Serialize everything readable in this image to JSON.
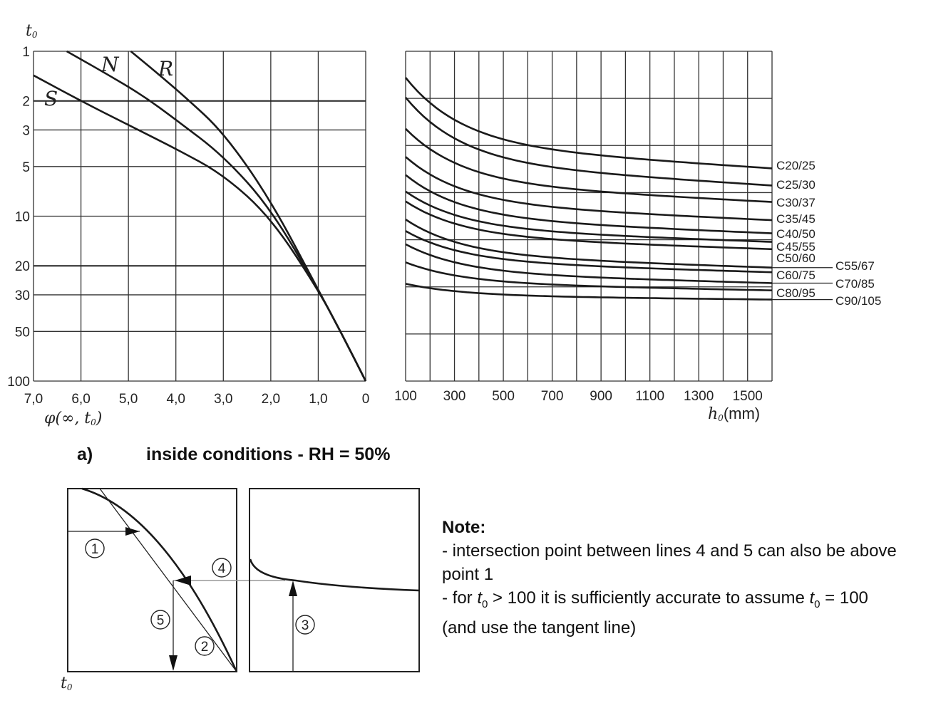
{
  "chart_data": [
    {
      "type": "line",
      "xlabel_prefix": "φ(∞, t",
      "xlabel_sub": "0",
      "xlabel_suffix": ")",
      "ylabel": "t",
      "ylabel_sub": "0",
      "xlim": [
        7.0,
        0
      ],
      "ylim": [
        1,
        100
      ],
      "yscale": "log",
      "x_ticks": [
        "7,0",
        "6,0",
        "5,0",
        "4,0",
        "3,0",
        "2,0",
        "1,0",
        "0"
      ],
      "y_ticks": [
        "1",
        "2",
        "3",
        "5",
        "10",
        "20",
        "30",
        "50",
        "100"
      ],
      "series": [
        {
          "name": "S",
          "x": [
            7.0,
            6.0,
            5.0,
            4.0,
            3.0,
            2.0,
            1.0,
            0.5,
            0
          ],
          "y": [
            1.4,
            2.0,
            2.8,
            3.9,
            5.6,
            10.2,
            28,
            52,
            100
          ]
        },
        {
          "name": "N",
          "x": [
            6.3,
            5.5,
            4.7,
            4.0,
            3.0,
            2.0,
            1.0,
            0.5,
            0
          ],
          "y": [
            1.0,
            1.35,
            1.85,
            2.6,
            4.3,
            9.0,
            28,
            52,
            100
          ]
        },
        {
          "name": "R",
          "x": [
            4.95,
            4.4,
            3.8,
            3.0,
            2.0,
            1.0,
            0.5,
            0
          ],
          "y": [
            1.0,
            1.35,
            1.9,
            3.1,
            8.0,
            28,
            52,
            100
          ]
        }
      ]
    },
    {
      "type": "line",
      "xlabel_main": "h",
      "xlabel_sub": "0",
      "xlabel_unit": "(mm)",
      "xlim": [
        100,
        1600
      ],
      "x_ticks": [
        "100",
        "300",
        "500",
        "700",
        "900",
        "1100",
        "1300",
        "1500"
      ],
      "series": [
        {
          "name": "C20/25",
          "y_start_frac": 0.08,
          "y_end_frac": 0.355
        },
        {
          "name": "C25/30",
          "y_start_frac": 0.14,
          "y_end_frac": 0.407
        },
        {
          "name": "C30/37",
          "y_start_frac": 0.235,
          "y_end_frac": 0.457
        },
        {
          "name": "C35/45",
          "y_start_frac": 0.32,
          "y_end_frac": 0.512
        },
        {
          "name": "C40/50",
          "y_start_frac": 0.375,
          "y_end_frac": 0.552
        },
        {
          "name": "C45/55",
          "y_start_frac": 0.425,
          "y_end_frac": 0.578
        },
        {
          "name": "C50/60",
          "y_start_frac": 0.455,
          "y_end_frac": 0.6
        },
        {
          "name": "C55/67",
          "y_start_frac": 0.51,
          "y_end_frac": 0.656
        },
        {
          "name": "C60/75",
          "y_start_frac": 0.545,
          "y_end_frac": 0.67
        },
        {
          "name": "C70/85",
          "y_start_frac": 0.585,
          "y_end_frac": 0.703
        },
        {
          "name": "C80/95",
          "y_start_frac": 0.64,
          "y_end_frac": 0.725
        },
        {
          "name": "C90/105",
          "y_start_frac": 0.705,
          "y_end_frac": 0.753
        }
      ]
    }
  ],
  "caption": {
    "letter": "a)",
    "text": "inside conditions -  RH = 50%"
  },
  "schematic": {
    "markers": [
      "1",
      "2",
      "3",
      "4",
      "5"
    ],
    "axis_label": "t",
    "axis_label_sub": "0"
  },
  "note": {
    "title": "Note:",
    "line1": "-  intersection point between lines 4 and 5 can also be above point 1",
    "line2_a": "- for ",
    "line2_t": "t",
    "line2_sub": "0",
    "line2_b": " > 100 it is sufficiently accurate to assume ",
    "line2_c": " = 100 (and use the tangent line)"
  }
}
